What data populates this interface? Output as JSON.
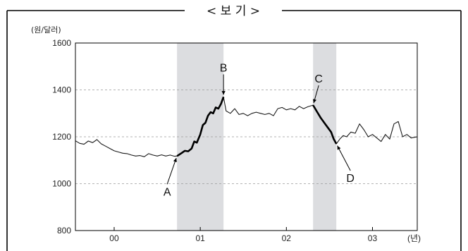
{
  "header": {
    "title": "< 보 기 >"
  },
  "chart_data": {
    "type": "line",
    "title": "",
    "ylabel": "(원/달러)",
    "xlabel": "(년)",
    "ylim": [
      800,
      1600
    ],
    "yticks": [
      800,
      1000,
      1200,
      1400,
      1600
    ],
    "xlim": [
      1999.55,
      2003.52
    ],
    "xticks": [
      {
        "label": "00",
        "x": 2000.0
      },
      {
        "label": "01",
        "x": 2001.0
      },
      {
        "label": "02",
        "x": 2002.0
      },
      {
        "label": "03",
        "x": 2003.0
      }
    ],
    "grid": {
      "horizontal": [
        1000,
        1200,
        1400
      ],
      "style": "dashed"
    },
    "shaded_periods": [
      {
        "from": 2000.73,
        "to": 2001.27
      },
      {
        "from": 2002.31,
        "to": 2002.58
      }
    ],
    "series": [
      {
        "name": "",
        "points": [
          [
            1999.55,
            1183
          ],
          [
            1999.6,
            1172
          ],
          [
            1999.65,
            1168
          ],
          [
            1999.7,
            1182
          ],
          [
            1999.75,
            1175
          ],
          [
            1999.8,
            1188
          ],
          [
            1999.85,
            1170
          ],
          [
            1999.9,
            1160
          ],
          [
            1999.95,
            1150
          ],
          [
            2000.0,
            1140
          ],
          [
            2000.05,
            1135
          ],
          [
            2000.1,
            1130
          ],
          [
            2000.15,
            1128
          ],
          [
            2000.2,
            1122
          ],
          [
            2000.25,
            1118
          ],
          [
            2000.3,
            1120
          ],
          [
            2000.35,
            1115
          ],
          [
            2000.4,
            1128
          ],
          [
            2000.45,
            1122
          ],
          [
            2000.5,
            1118
          ],
          [
            2000.55,
            1123
          ],
          [
            2000.6,
            1118
          ],
          [
            2000.65,
            1122
          ],
          [
            2000.7,
            1117
          ],
          [
            2000.73,
            1118
          ],
          [
            2000.78,
            1130
          ],
          [
            2000.82,
            1140
          ],
          [
            2000.86,
            1138
          ],
          [
            2000.9,
            1150
          ],
          [
            2000.93,
            1180
          ],
          [
            2000.96,
            1175
          ],
          [
            2001.0,
            1210
          ],
          [
            2001.03,
            1250
          ],
          [
            2001.06,
            1260
          ],
          [
            2001.09,
            1290
          ],
          [
            2001.12,
            1305
          ],
          [
            2001.15,
            1300
          ],
          [
            2001.18,
            1325
          ],
          [
            2001.21,
            1320
          ],
          [
            2001.24,
            1340
          ],
          [
            2001.27,
            1370
          ],
          [
            2001.3,
            1310
          ],
          [
            2001.35,
            1300
          ],
          [
            2001.4,
            1320
          ],
          [
            2001.45,
            1295
          ],
          [
            2001.5,
            1300
          ],
          [
            2001.55,
            1290
          ],
          [
            2001.6,
            1300
          ],
          [
            2001.65,
            1305
          ],
          [
            2001.7,
            1300
          ],
          [
            2001.75,
            1295
          ],
          [
            2001.8,
            1300
          ],
          [
            2001.85,
            1290
          ],
          [
            2001.9,
            1320
          ],
          [
            2001.95,
            1325
          ],
          [
            2002.0,
            1315
          ],
          [
            2002.05,
            1320
          ],
          [
            2002.1,
            1315
          ],
          [
            2002.15,
            1330
          ],
          [
            2002.2,
            1320
          ],
          [
            2002.25,
            1328
          ],
          [
            2002.31,
            1335
          ],
          [
            2002.35,
            1310
          ],
          [
            2002.4,
            1280
          ],
          [
            2002.44,
            1260
          ],
          [
            2002.48,
            1240
          ],
          [
            2002.52,
            1220
          ],
          [
            2002.55,
            1190
          ],
          [
            2002.58,
            1170
          ],
          [
            2002.62,
            1190
          ],
          [
            2002.66,
            1205
          ],
          [
            2002.7,
            1200
          ],
          [
            2002.75,
            1220
          ],
          [
            2002.8,
            1215
          ],
          [
            2002.85,
            1255
          ],
          [
            2002.9,
            1230
          ],
          [
            2002.95,
            1200
          ],
          [
            2003.0,
            1210
          ],
          [
            2003.05,
            1195
          ],
          [
            2003.1,
            1180
          ],
          [
            2003.15,
            1210
          ],
          [
            2003.2,
            1190
          ],
          [
            2003.25,
            1255
          ],
          [
            2003.3,
            1265
          ],
          [
            2003.35,
            1200
          ],
          [
            2003.4,
            1210
          ],
          [
            2003.45,
            1195
          ],
          [
            2003.52,
            1200
          ]
        ],
        "bold_ranges": [
          [
            2000.73,
            2001.27
          ],
          [
            2002.31,
            2002.58
          ]
        ]
      }
    ],
    "annotations": [
      {
        "label": "A",
        "x": 2000.73,
        "y": 1118
      },
      {
        "label": "B",
        "x": 2001.27,
        "y": 1370
      },
      {
        "label": "C",
        "x": 2002.31,
        "y": 1335
      },
      {
        "label": "D",
        "x": 2002.58,
        "y": 1170
      }
    ]
  }
}
